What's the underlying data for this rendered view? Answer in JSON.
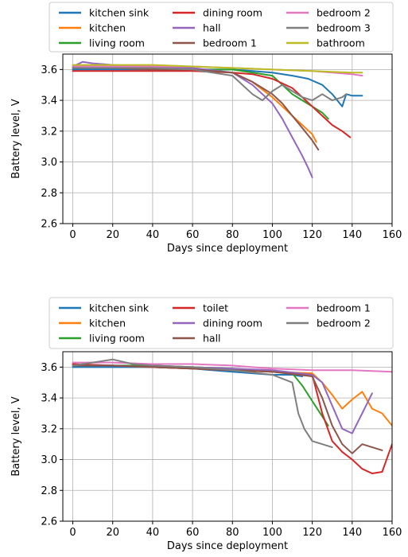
{
  "chart_data": [
    {
      "type": "line",
      "xlabel": "Days since deployment",
      "ylabel": "Battery level, V",
      "xlim": [
        -5,
        160
      ],
      "ylim": [
        2.6,
        3.7
      ],
      "xticks": [
        0,
        20,
        40,
        60,
        80,
        100,
        120,
        140,
        160
      ],
      "yticks": [
        2.6,
        2.8,
        3.0,
        3.2,
        3.4,
        3.6
      ],
      "grid": true,
      "legend_position": "top",
      "series": [
        {
          "name": "kitchen sink",
          "color": "#1f77b4",
          "x": [
            0,
            20,
            40,
            60,
            80,
            90,
            100,
            110,
            118,
            125,
            130,
            135,
            137,
            140,
            145
          ],
          "y": [
            3.6,
            3.6,
            3.6,
            3.6,
            3.6,
            3.59,
            3.58,
            3.56,
            3.54,
            3.5,
            3.44,
            3.36,
            3.44,
            3.43,
            3.43
          ]
        },
        {
          "name": "kitchen",
          "color": "#ff7f0e",
          "x": [
            0,
            20,
            40,
            60,
            80,
            90,
            100,
            105,
            110,
            115,
            120,
            122
          ],
          "y": [
            3.61,
            3.61,
            3.61,
            3.6,
            3.58,
            3.52,
            3.42,
            3.36,
            3.3,
            3.24,
            3.18,
            3.13
          ]
        },
        {
          "name": "living room",
          "color": "#2ca02c",
          "x": [
            0,
            20,
            40,
            60,
            80,
            90,
            100,
            105,
            110,
            115,
            120,
            125,
            128
          ],
          "y": [
            3.61,
            3.61,
            3.61,
            3.6,
            3.6,
            3.58,
            3.56,
            3.5,
            3.44,
            3.4,
            3.36,
            3.32,
            3.28
          ]
        },
        {
          "name": "dining room",
          "color": "#d62728",
          "x": [
            0,
            20,
            40,
            60,
            80,
            90,
            100,
            110,
            115,
            120,
            125,
            130,
            135,
            139
          ],
          "y": [
            3.59,
            3.59,
            3.59,
            3.59,
            3.58,
            3.57,
            3.54,
            3.48,
            3.42,
            3.36,
            3.3,
            3.24,
            3.2,
            3.16
          ]
        },
        {
          "name": "hall",
          "color": "#9467bd",
          "x": [
            0,
            5,
            10,
            20,
            40,
            60,
            80,
            90,
            100,
            105,
            110,
            115,
            118,
            120
          ],
          "y": [
            3.62,
            3.65,
            3.64,
            3.63,
            3.62,
            3.61,
            3.58,
            3.5,
            3.38,
            3.28,
            3.16,
            3.04,
            2.96,
            2.9
          ]
        },
        {
          "name": "bedroom 1",
          "color": "#8c564b",
          "x": [
            0,
            20,
            40,
            60,
            80,
            90,
            100,
            105,
            110,
            115,
            120,
            123
          ],
          "y": [
            3.61,
            3.61,
            3.6,
            3.6,
            3.58,
            3.52,
            3.44,
            3.38,
            3.3,
            3.22,
            3.14,
            3.08
          ]
        },
        {
          "name": "bedroom 2",
          "color": "#e377c2",
          "x": [
            0,
            20,
            40,
            60,
            80,
            100,
            120,
            140,
            145
          ],
          "y": [
            3.62,
            3.62,
            3.62,
            3.62,
            3.61,
            3.6,
            3.59,
            3.57,
            3.56
          ]
        },
        {
          "name": "bedroom 3",
          "color": "#7f7f7f",
          "x": [
            0,
            20,
            40,
            60,
            80,
            85,
            90,
            95,
            100,
            105,
            110,
            115,
            120,
            125,
            130,
            135,
            137
          ],
          "y": [
            3.61,
            3.61,
            3.61,
            3.6,
            3.56,
            3.5,
            3.44,
            3.4,
            3.46,
            3.5,
            3.46,
            3.42,
            3.4,
            3.44,
            3.4,
            3.42,
            3.44
          ]
        },
        {
          "name": "bathroom",
          "color": "#bcbd22",
          "x": [
            0,
            20,
            40,
            60,
            80,
            100,
            120,
            140,
            145
          ],
          "y": [
            3.63,
            3.63,
            3.63,
            3.62,
            3.61,
            3.6,
            3.59,
            3.58,
            3.58
          ]
        }
      ]
    },
    {
      "type": "line",
      "xlabel": "Days since deployment",
      "ylabel": "Battery level, V",
      "xlim": [
        -5,
        160
      ],
      "ylim": [
        2.6,
        3.7
      ],
      "xticks": [
        0,
        20,
        40,
        60,
        80,
        100,
        120,
        140,
        160
      ],
      "yticks": [
        2.6,
        2.8,
        3.0,
        3.2,
        3.4,
        3.6
      ],
      "grid": true,
      "legend_position": "top",
      "series": [
        {
          "name": "kitchen sink",
          "color": "#1f77b4",
          "x": [
            0,
            20,
            40,
            60,
            80,
            100,
            110,
            115
          ],
          "y": [
            3.6,
            3.6,
            3.6,
            3.59,
            3.57,
            3.55,
            3.55,
            3.54
          ]
        },
        {
          "name": "kitchen",
          "color": "#ff7f0e",
          "x": [
            0,
            20,
            40,
            60,
            80,
            100,
            120,
            125,
            130,
            135,
            140,
            145,
            150,
            155,
            160
          ],
          "y": [
            3.61,
            3.61,
            3.6,
            3.59,
            3.58,
            3.57,
            3.56,
            3.5,
            3.42,
            3.33,
            3.39,
            3.44,
            3.33,
            3.3,
            3.22
          ]
        },
        {
          "name": "living room",
          "color": "#2ca02c",
          "x": [
            0,
            20,
            40,
            60,
            80,
            100,
            110,
            115,
            120,
            125,
            128
          ],
          "y": [
            3.61,
            3.61,
            3.61,
            3.6,
            3.59,
            3.57,
            3.56,
            3.48,
            3.38,
            3.28,
            3.22
          ]
        },
        {
          "name": "toilet",
          "color": "#d62728",
          "x": [
            0,
            20,
            40,
            60,
            80,
            100,
            120,
            125,
            130,
            135,
            140,
            145,
            150,
            155,
            160
          ],
          "y": [
            3.62,
            3.61,
            3.6,
            3.59,
            3.58,
            3.57,
            3.55,
            3.3,
            3.12,
            3.05,
            3.0,
            2.94,
            2.91,
            2.92,
            3.1
          ]
        },
        {
          "name": "dining room",
          "color": "#9467bd",
          "x": [
            0,
            20,
            40,
            60,
            80,
            100,
            120,
            125,
            130,
            135,
            140,
            145,
            150
          ],
          "y": [
            3.61,
            3.61,
            3.6,
            3.6,
            3.59,
            3.58,
            3.55,
            3.5,
            3.35,
            3.2,
            3.17,
            3.3,
            3.43
          ]
        },
        {
          "name": "hall",
          "color": "#8c564b",
          "x": [
            0,
            20,
            40,
            60,
            80,
            100,
            120,
            125,
            130,
            135,
            140,
            145,
            150,
            155
          ],
          "y": [
            3.61,
            3.61,
            3.6,
            3.59,
            3.58,
            3.57,
            3.54,
            3.4,
            3.22,
            3.1,
            3.04,
            3.1,
            3.08,
            3.06
          ]
        },
        {
          "name": "bedroom 1",
          "color": "#e377c2",
          "x": [
            0,
            20,
            40,
            60,
            80,
            90,
            100,
            120,
            140,
            160
          ],
          "y": [
            3.63,
            3.63,
            3.62,
            3.62,
            3.61,
            3.6,
            3.59,
            3.58,
            3.58,
            3.57
          ]
        },
        {
          "name": "bedroom 2",
          "color": "#7f7f7f",
          "x": [
            0,
            10,
            20,
            30,
            40,
            60,
            80,
            100,
            110,
            113,
            116,
            120,
            125,
            130
          ],
          "y": [
            3.61,
            3.63,
            3.65,
            3.62,
            3.61,
            3.6,
            3.58,
            3.55,
            3.5,
            3.3,
            3.2,
            3.12,
            3.1,
            3.08
          ]
        }
      ]
    }
  ]
}
